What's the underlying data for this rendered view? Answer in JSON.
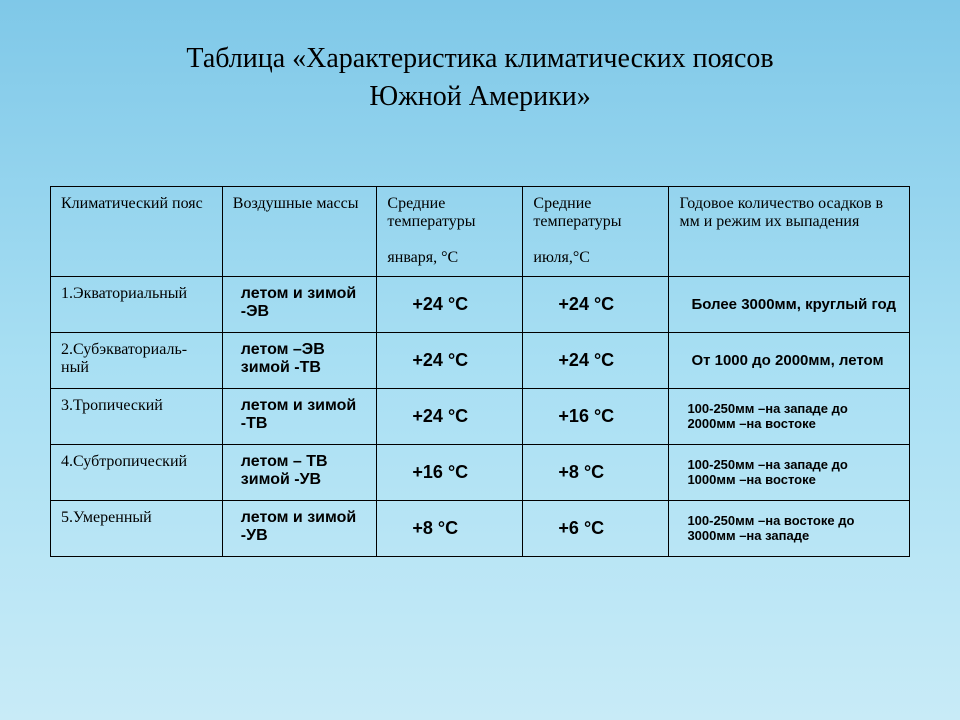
{
  "title_line1": "Таблица «Характеристика климатических поясов",
  "title_line2": "Южной Америки»",
  "columns": {
    "c1": "Климатический пояс",
    "c2": "Воздушные массы",
    "c3_a": "Средние температуры",
    "c3_b": "января, °С",
    "c4_a": "Средние температуры",
    "c4_b": "июля,°С",
    "c5": "Годовое количество осадков в мм и режим их выпадения"
  },
  "rows": [
    {
      "zone": "1.Экваториальный",
      "air": "летом и зимой -ЭВ",
      "jan": "+24 °С",
      "jul": "+24 °С",
      "precip": "Более 3000мм, круглый год",
      "precip_style": "bold"
    },
    {
      "zone": "2.Субэкваториаль-ный",
      "air": "летом –ЭВ зимой -ТВ",
      "jan": "+24 °С",
      "jul": "+24 °С",
      "precip": "От 1000 до 2000мм, летом",
      "precip_style": "bold"
    },
    {
      "zone": "3.Тропический",
      "air": "летом и зимой -ТВ",
      "jan": "+24 °С",
      "jul": "+16 °С",
      "precip": "100-250мм –на западе до 2000мм –на востоке",
      "precip_style": "small"
    },
    {
      "zone": "4.Субтропический",
      "air": "летом – ТВ зимой -УВ",
      "jan": "+16 °С",
      "jul": "+8 °С",
      "precip": "100-250мм –на западе до 1000мм –на востоке",
      "precip_style": "small"
    },
    {
      "zone": "5.Умеренный",
      "air": "летом и зимой -УВ",
      "jan": "+8 °С",
      "jul": "+6 °С",
      "precip": "100-250мм –на востоке до 3000мм –на западе",
      "precip_style": "small"
    }
  ]
}
